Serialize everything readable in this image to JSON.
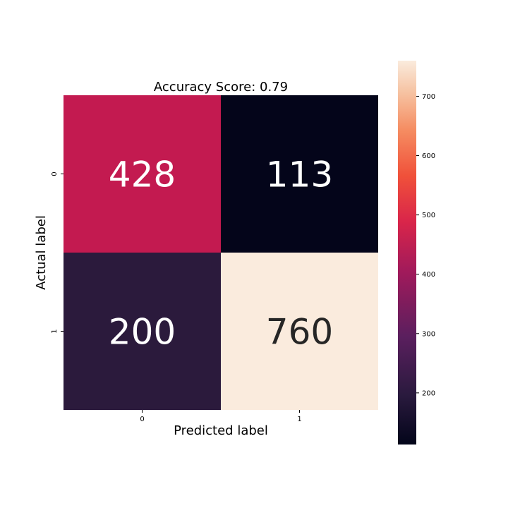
{
  "chart_data": {
    "type": "heatmap",
    "title": "Accuracy Score: 0.79",
    "xlabel": "Predicted label",
    "ylabel": "Actual label",
    "x_categories": [
      "0",
      "1"
    ],
    "y_categories": [
      "0",
      "1"
    ],
    "values": [
      [
        428,
        113
      ],
      [
        200,
        760
      ]
    ],
    "colormap": "rocket",
    "colorbar": {
      "range": [
        113,
        760
      ],
      "ticks": [
        "200",
        "300",
        "400",
        "500",
        "600",
        "700"
      ],
      "tick_values": [
        200,
        300,
        400,
        500,
        600,
        700
      ]
    },
    "cell_colors": [
      [
        "#c31a50",
        "#04051a"
      ],
      [
        "#2b1a3c",
        "#faebdd"
      ]
    ],
    "text_colors": [
      [
        "#ffffff",
        "#ffffff"
      ],
      [
        "#ffffff",
        "#262626"
      ]
    ]
  }
}
